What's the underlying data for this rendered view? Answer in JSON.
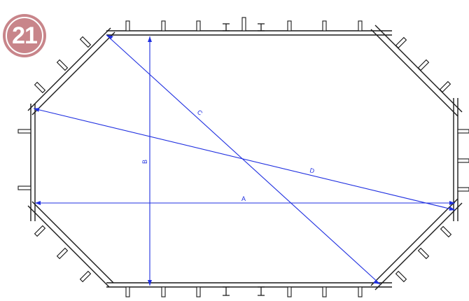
{
  "step_badge": {
    "number": "21",
    "color": "#c8858a"
  },
  "dimension_color": "#1f2fe0",
  "outline_color": "#1a1a1a",
  "dimensions": [
    {
      "name": "dimension-a",
      "label": "A"
    },
    {
      "name": "dimension-b",
      "label": "B"
    },
    {
      "name": "dimension-c",
      "label": "C"
    },
    {
      "name": "dimension-d",
      "label": "D"
    }
  ]
}
